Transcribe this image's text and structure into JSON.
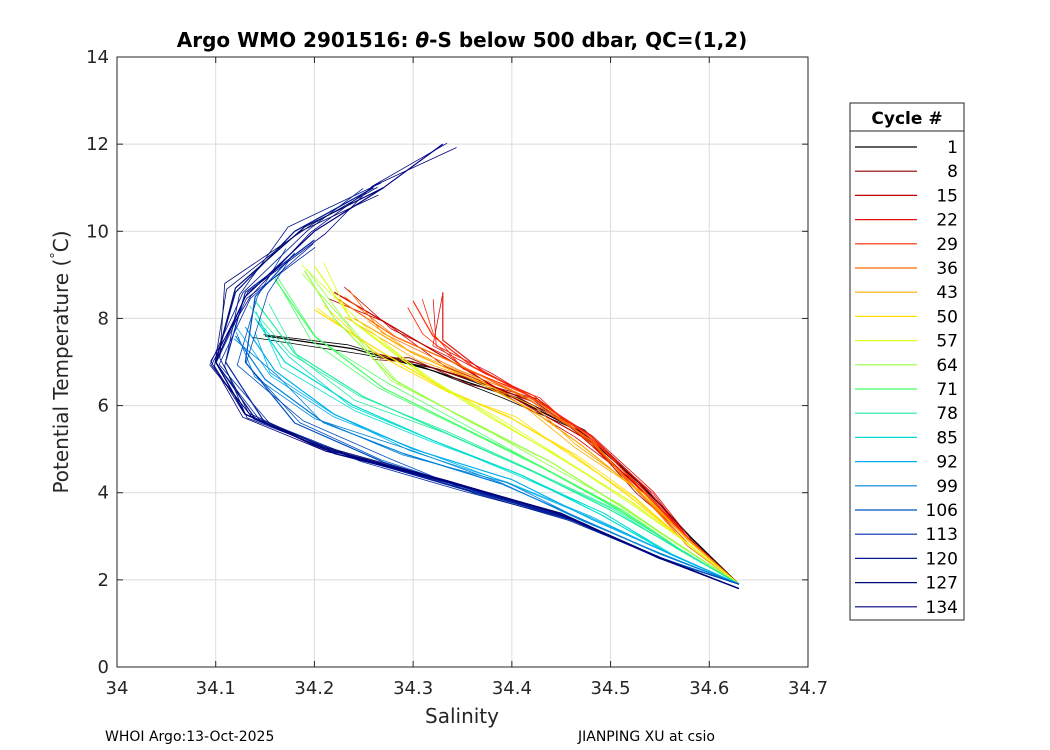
{
  "chart_data": {
    "type": "line",
    "title_prefix": "Argo WMO 2901516: ",
    "title_theta": "θ",
    "title_suffix": "-S below 500 dbar,  QC=(1,2)",
    "xlabel": "Salinity",
    "ylabel_main": "Potential Temperature (",
    "ylabel_deg": "°",
    "ylabel_unit": "C)",
    "xlim": [
      34,
      34.7
    ],
    "ylim": [
      0,
      14
    ],
    "xticks": [
      34,
      34.1,
      34.2,
      34.3,
      34.4,
      34.5,
      34.6,
      34.7
    ],
    "xtick_labels": [
      "34",
      "34.1",
      "34.2",
      "34.3",
      "34.4",
      "34.5",
      "34.6",
      "34.7"
    ],
    "yticks": [
      0,
      2,
      4,
      6,
      8,
      10,
      12,
      14
    ],
    "ytick_labels": [
      "0",
      "2",
      "4",
      "6",
      "8",
      "10",
      "12",
      "14"
    ],
    "grid": true,
    "legend_position": "outside-right",
    "legend_title": "Cycle #",
    "legend": [
      {
        "label": "1",
        "color": "#000000"
      },
      {
        "label": "8",
        "color": "#8b0000"
      },
      {
        "label": "15",
        "color": "#c00000"
      },
      {
        "label": "22",
        "color": "#e01010"
      },
      {
        "label": "29",
        "color": "#ff2a00"
      },
      {
        "label": "36",
        "color": "#ff6a00"
      },
      {
        "label": "43",
        "color": "#ffaa00"
      },
      {
        "label": "50",
        "color": "#ffe000"
      },
      {
        "label": "57",
        "color": "#ddff22"
      },
      {
        "label": "64",
        "color": "#99ff44"
      },
      {
        "label": "71",
        "color": "#44ff66"
      },
      {
        "label": "78",
        "color": "#22eea0"
      },
      {
        "label": "85",
        "color": "#00ddd0"
      },
      {
        "label": "92",
        "color": "#00b0ee"
      },
      {
        "label": "99",
        "color": "#0080d8"
      },
      {
        "label": "106",
        "color": "#0050c0"
      },
      {
        "label": "113",
        "color": "#0028a8"
      },
      {
        "label": "120",
        "color": "#001a90"
      },
      {
        "label": "127",
        "color": "#000a70"
      },
      {
        "label": "134",
        "color": "#000080"
      }
    ],
    "series": [
      {
        "name": "1",
        "color": "#000000",
        "s": [
          34.15,
          34.24,
          34.32,
          34.4,
          34.47,
          34.53,
          34.58,
          34.63
        ],
        "t": [
          7.6,
          7.3,
          6.8,
          6.2,
          5.4,
          4.2,
          3.0,
          1.9
        ]
      },
      {
        "name": "8",
        "color": "#8b0000",
        "s": [
          34.26,
          34.3,
          34.36,
          34.42,
          34.48,
          34.53,
          34.58,
          34.63
        ],
        "t": [
          7.2,
          7.0,
          6.6,
          6.1,
          5.2,
          4.0,
          2.9,
          1.9
        ]
      },
      {
        "name": "15",
        "color": "#c00000",
        "s": [
          34.22,
          34.28,
          34.34,
          34.4,
          34.47,
          34.53,
          34.58,
          34.63
        ],
        "t": [
          8.6,
          7.8,
          7.0,
          6.2,
          5.3,
          4.1,
          2.9,
          1.9
        ]
      },
      {
        "name": "22",
        "color": "#e01010",
        "s": [
          34.33,
          34.33,
          34.37,
          34.42,
          34.48,
          34.54,
          34.58,
          34.63
        ],
        "t": [
          8.6,
          7.5,
          6.8,
          6.2,
          5.3,
          4.0,
          2.9,
          1.9
        ]
      },
      {
        "name": "29",
        "color": "#ff2a00",
        "s": [
          34.3,
          34.32,
          34.36,
          34.42,
          34.48,
          34.53,
          34.58,
          34.63
        ],
        "t": [
          8.4,
          7.6,
          6.9,
          6.2,
          5.3,
          4.1,
          2.9,
          1.9
        ]
      },
      {
        "name": "36",
        "color": "#ff6a00",
        "s": [
          34.22,
          34.28,
          34.35,
          34.42,
          34.48,
          34.53,
          34.58,
          34.63
        ],
        "t": [
          8.5,
          7.6,
          6.9,
          6.1,
          5.2,
          4.0,
          2.8,
          1.9
        ]
      },
      {
        "name": "43",
        "color": "#ffaa00",
        "s": [
          34.24,
          34.3,
          34.36,
          34.42,
          34.47,
          34.53,
          34.58,
          34.63
        ],
        "t": [
          8.0,
          7.2,
          6.6,
          5.9,
          5.1,
          4.0,
          2.9,
          1.9
        ]
      },
      {
        "name": "50",
        "color": "#ffe000",
        "s": [
          34.2,
          34.27,
          34.33,
          34.4,
          34.46,
          34.52,
          34.58,
          34.63
        ],
        "t": [
          8.2,
          7.2,
          6.4,
          5.7,
          4.9,
          3.9,
          2.8,
          1.9
        ]
      },
      {
        "name": "57",
        "color": "#ddff22",
        "s": [
          34.2,
          34.24,
          34.31,
          34.38,
          34.45,
          34.52,
          34.58,
          34.63
        ],
        "t": [
          9.2,
          7.9,
          6.7,
          5.7,
          4.8,
          3.8,
          2.8,
          1.9
        ]
      },
      {
        "name": "64",
        "color": "#99ff44",
        "s": [
          34.19,
          34.22,
          34.28,
          34.36,
          34.44,
          34.51,
          34.57,
          34.63
        ],
        "t": [
          9.1,
          8.0,
          6.6,
          5.6,
          4.7,
          3.7,
          2.8,
          1.9
        ]
      },
      {
        "name": "71",
        "color": "#44ff66",
        "s": [
          34.16,
          34.2,
          34.27,
          34.35,
          34.43,
          34.51,
          34.57,
          34.63
        ],
        "t": [
          8.9,
          7.6,
          6.4,
          5.5,
          4.6,
          3.6,
          2.7,
          1.9
        ]
      },
      {
        "name": "78",
        "color": "#22eea0",
        "s": [
          34.14,
          34.18,
          34.25,
          34.33,
          34.42,
          34.5,
          34.57,
          34.63
        ],
        "t": [
          8.4,
          7.2,
          6.2,
          5.4,
          4.5,
          3.6,
          2.7,
          1.9
        ]
      },
      {
        "name": "85",
        "color": "#00ddd0",
        "s": [
          34.14,
          34.17,
          34.24,
          34.32,
          34.41,
          34.49,
          34.56,
          34.63
        ],
        "t": [
          8.0,
          7.0,
          6.0,
          5.2,
          4.4,
          3.5,
          2.6,
          1.9
        ]
      },
      {
        "name": "92",
        "color": "#00b0ee",
        "s": [
          34.13,
          34.16,
          34.22,
          34.3,
          34.4,
          34.48,
          34.56,
          34.63
        ],
        "t": [
          7.8,
          6.8,
          5.8,
          5.0,
          4.3,
          3.4,
          2.6,
          1.9
        ]
      },
      {
        "name": "99",
        "color": "#0080d8",
        "s": [
          34.12,
          34.15,
          34.21,
          34.29,
          34.39,
          34.47,
          34.55,
          34.63
        ],
        "t": [
          7.6,
          6.6,
          5.6,
          4.9,
          4.2,
          3.4,
          2.6,
          1.9
        ]
      },
      {
        "name": "106",
        "color": "#0050c0",
        "s": [
          34.18,
          34.14,
          34.13,
          34.18,
          34.27,
          34.37,
          34.47,
          34.55,
          34.63
        ],
        "t": [
          9.5,
          8.5,
          7.0,
          5.6,
          4.7,
          4.0,
          3.3,
          2.5,
          1.9
        ]
      },
      {
        "name": "113",
        "color": "#0028a8",
        "s": [
          34.2,
          34.13,
          34.11,
          34.15,
          34.24,
          34.35,
          34.46,
          34.55,
          34.63
        ],
        "t": [
          9.8,
          8.6,
          7.0,
          5.6,
          4.8,
          4.1,
          3.4,
          2.5,
          1.8
        ]
      },
      {
        "name": "120",
        "color": "#001a90",
        "s": [
          34.26,
          34.18,
          34.12,
          34.1,
          34.14,
          34.22,
          34.34,
          34.46,
          34.55,
          34.63
        ],
        "t": [
          11.0,
          10.0,
          8.6,
          7.0,
          5.7,
          4.9,
          4.2,
          3.4,
          2.5,
          1.8
        ]
      },
      {
        "name": "127",
        "color": "#000a70",
        "s": [
          34.27,
          34.19,
          34.12,
          34.1,
          34.13,
          34.21,
          34.33,
          34.45,
          34.55,
          34.63
        ],
        "t": [
          11.0,
          10.1,
          8.7,
          7.0,
          5.8,
          5.0,
          4.3,
          3.5,
          2.5,
          1.8
        ]
      },
      {
        "name": "134",
        "color": "#000080",
        "s": [
          34.33,
          34.27,
          34.2,
          34.13,
          34.1,
          34.13,
          34.21,
          34.33,
          34.45,
          34.55,
          34.63
        ],
        "t": [
          12.0,
          11.0,
          10.0,
          8.5,
          7.0,
          5.8,
          5.0,
          4.3,
          3.5,
          2.5,
          1.8
        ]
      }
    ]
  },
  "footer": {
    "left": "WHOI Argo:13-Oct-2025",
    "right": "JIANPING XU at csio"
  }
}
